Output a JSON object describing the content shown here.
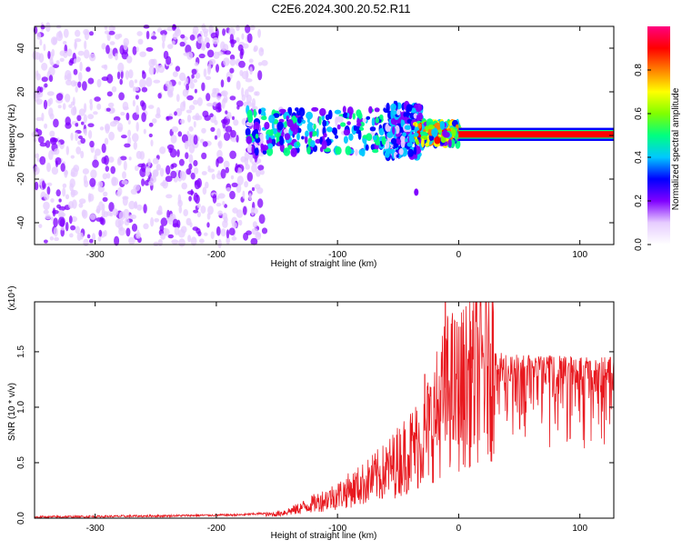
{
  "title": "C2E6.2024.300.20.52.R11",
  "chart_data": [
    {
      "type": "heatmap",
      "xlabel": "Height of straight line (km)",
      "ylabel": "Frequency (Hz)",
      "xlim": [
        -350,
        128
      ],
      "ylim": [
        -50,
        50
      ],
      "xticks": [
        -300,
        -200,
        -100,
        0,
        100
      ],
      "yticks": [
        -40,
        -20,
        0,
        20,
        40
      ],
      "colorbar": {
        "label": "Normalized spectral amplitude",
        "range": [
          0.0,
          1.0
        ],
        "ticks": [
          "0.0",
          "0.2",
          "0.4",
          "0.6",
          "0.8"
        ],
        "colors": [
          "#ffffff",
          "#e6ccff",
          "#8000ff",
          "#0000ff",
          "#00c8ff",
          "#00ff80",
          "#80ff00",
          "#ffff00",
          "#ff8000",
          "#ff0000",
          "#ff0080"
        ]
      },
      "regions": [
        {
          "x": [
            -350,
            -160
          ],
          "freq": [
            -50,
            50
          ],
          "amplitude": 0.12
        },
        {
          "x": [
            -175,
            -60
          ],
          "freq": [
            -8,
            12
          ],
          "amplitude": 0.3
        },
        {
          "x": [
            -60,
            -30
          ],
          "freq": [
            -10,
            14
          ],
          "amplitude": 0.25
        },
        {
          "x": [
            -35,
            0
          ],
          "freq": [
            -4,
            6
          ],
          "amplitude": 0.5
        },
        {
          "x": [
            0,
            128
          ],
          "freq": [
            -1,
            2
          ],
          "amplitude": 0.95
        }
      ]
    },
    {
      "type": "line",
      "xlabel": "Height of straight line (km)",
      "ylabel": "SNR (10 * v/v)",
      "multiplier": "(x10⁴)",
      "xlim": [
        -350,
        128
      ],
      "ylim": [
        0,
        1.95
      ],
      "xticks": [
        -300,
        -200,
        -100,
        0,
        100
      ],
      "yticks": [
        "0.0",
        "0.5",
        "1.0",
        "1.5"
      ],
      "color": "#e8191f",
      "series": [
        {
          "x": [
            -350,
            -250,
            -180,
            -150,
            -135,
            -120,
            -100,
            -80,
            -60,
            -45,
            -30,
            -20,
            -12,
            -8,
            0,
            10,
            20,
            30,
            50,
            70,
            90,
            110,
            128
          ],
          "y": [
            0.0,
            0.01,
            0.02,
            0.04,
            0.08,
            0.14,
            0.22,
            0.32,
            0.45,
            0.6,
            0.75,
            0.95,
            1.15,
            1.25,
            1.2,
            1.35,
            1.45,
            1.5,
            1.48,
            1.47,
            1.46,
            1.45,
            1.45
          ]
        }
      ],
      "spikes": [
        {
          "x": -11,
          "y": 1.95
        },
        {
          "x": 10,
          "y": 1.7
        },
        {
          "x": -28,
          "y": 1.3
        }
      ]
    }
  ]
}
